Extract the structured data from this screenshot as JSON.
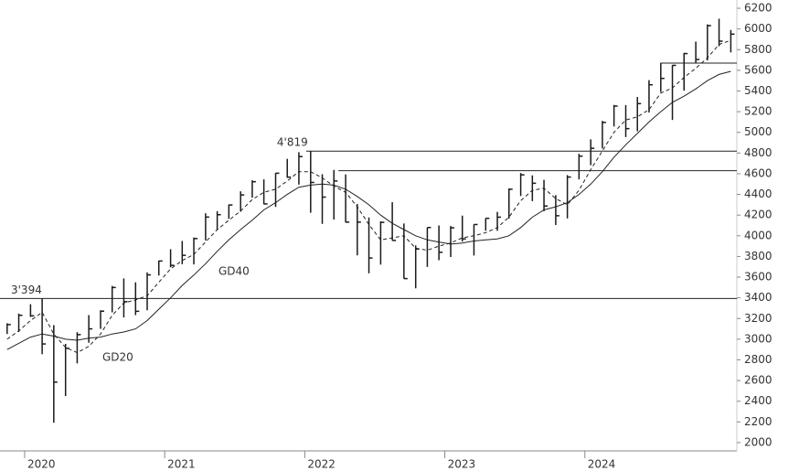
{
  "chart_data": {
    "type": "ohlc",
    "x": [
      2019.875,
      2019.958,
      2020.042,
      2020.125,
      2020.208,
      2020.292,
      2020.375,
      2020.458,
      2020.542,
      2020.625,
      2020.708,
      2020.792,
      2020.875,
      2020.958,
      2021.042,
      2021.125,
      2021.208,
      2021.292,
      2021.375,
      2021.458,
      2021.542,
      2021.625,
      2021.708,
      2021.792,
      2021.875,
      2021.958,
      2022.042,
      2022.125,
      2022.208,
      2022.292,
      2022.375,
      2022.458,
      2022.542,
      2022.625,
      2022.708,
      2022.792,
      2022.875,
      2022.958,
      2023.042,
      2023.125,
      2023.208,
      2023.292,
      2023.375,
      2023.458,
      2023.542,
      2023.625,
      2023.708,
      2023.792,
      2023.875,
      2023.958,
      2024.042,
      2024.125,
      2024.208,
      2024.292,
      2024.375,
      2024.458,
      2024.542,
      2024.625,
      2024.708,
      2024.792,
      2024.875,
      2024.958,
      2025.042
    ],
    "high": [
      3154,
      3248,
      3338,
      3394,
      3136,
      2955,
      3068,
      3233,
      3280,
      3515,
      3588,
      3550,
      3646,
      3760,
      3870,
      3950,
      3983,
      4218,
      4238,
      4302,
      4430,
      4537,
      4545,
      4608,
      4744,
      4808,
      4819,
      4595,
      4637,
      4593,
      4307,
      4177,
      4140,
      4325,
      4119,
      3907,
      4080,
      4100,
      4095,
      4195,
      4110,
      4170,
      4231,
      4458,
      4607,
      4584,
      4541,
      4393,
      4587,
      4793,
      4932,
      5111,
      5265,
      5264,
      5342,
      5505,
      5670,
      5651,
      5768,
      5878,
      6044,
      6099,
      5990
    ],
    "low": [
      3050,
      3070,
      3215,
      2855,
      2192,
      2450,
      2766,
      2966,
      3100,
      3260,
      3210,
      3233,
      3280,
      3616,
      3695,
      3725,
      3723,
      3955,
      4056,
      4164,
      4233,
      4368,
      4305,
      4279,
      4560,
      4495,
      4223,
      4115,
      4157,
      4128,
      3811,
      3637,
      3721,
      3955,
      3585,
      3492,
      3699,
      3764,
      3795,
      3944,
      3809,
      4049,
      4048,
      4166,
      4385,
      4335,
      4238,
      4104,
      4168,
      4546,
      4683,
      4845,
      5057,
      4954,
      5011,
      5192,
      5390,
      5120,
      5403,
      5674,
      5696,
      5833,
      5773
    ],
    "close": [
      3141,
      3231,
      3226,
      2954,
      2585,
      2912,
      3044,
      3100,
      3271,
      3500,
      3363,
      3270,
      3622,
      3756,
      3714,
      3811,
      3973,
      4181,
      4204,
      4298,
      4395,
      4523,
      4308,
      4605,
      4567,
      4766,
      4516,
      4374,
      4530,
      4132,
      4132,
      3785,
      4130,
      3955,
      3586,
      3872,
      4080,
      3840,
      4077,
      3970,
      4109,
      4169,
      4180,
      4450,
      4589,
      4508,
      4288,
      4194,
      4568,
      4770,
      4846,
      5096,
      5254,
      5036,
      5278,
      5460,
      5522,
      5648,
      5762,
      5705,
      6032,
      5882,
      5950
    ],
    "color": "#1a1a1a",
    "series": [
      {
        "name": "GD20",
        "dashed": true,
        "values": [
          3000,
          3080,
          3180,
          3260,
          3050,
          2920,
          2870,
          2930,
          3050,
          3230,
          3350,
          3380,
          3420,
          3550,
          3680,
          3760,
          3820,
          3940,
          4060,
          4150,
          4240,
          4350,
          4420,
          4450,
          4530,
          4620,
          4620,
          4560,
          4480,
          4420,
          4280,
          4110,
          3960,
          3980,
          4000,
          3880,
          3860,
          3900,
          3930,
          3980,
          4000,
          4030,
          4080,
          4180,
          4340,
          4440,
          4460,
          4360,
          4300,
          4440,
          4640,
          4820,
          5000,
          5120,
          5150,
          5220,
          5380,
          5430,
          5530,
          5620,
          5720,
          5850,
          5890
        ]
      },
      {
        "name": "GD40",
        "dashed": false,
        "values": [
          2900,
          2960,
          3020,
          3050,
          3030,
          3000,
          2990,
          3010,
          3020,
          3050,
          3070,
          3100,
          3180,
          3290,
          3400,
          3520,
          3620,
          3730,
          3850,
          3960,
          4060,
          4150,
          4250,
          4320,
          4400,
          4470,
          4490,
          4500,
          4490,
          4450,
          4380,
          4300,
          4200,
          4120,
          4060,
          4000,
          3960,
          3940,
          3920,
          3930,
          3950,
          3960,
          3970,
          4000,
          4080,
          4180,
          4250,
          4280,
          4320,
          4400,
          4500,
          4620,
          4760,
          4880,
          4990,
          5100,
          5200,
          5290,
          5350,
          5420,
          5500,
          5560,
          5590
        ]
      }
    ],
    "levels": [
      {
        "value": 3394,
        "label": "3'394",
        "from": 2019.824
      },
      {
        "value": 4819,
        "label": "4'819",
        "from": 2022.01
      },
      {
        "value": 4630,
        "from": 2022.24
      },
      {
        "value": 5670,
        "from": 2024.54
      }
    ],
    "xlim": [
      2019.824,
      2025.085
    ],
    "xticks": [
      2020,
      2021,
      2022,
      2023,
      2024
    ],
    "ylim": [
      1920,
      6280
    ],
    "yticks": [
      2000,
      2200,
      2400,
      2600,
      2800,
      3000,
      3200,
      3400,
      3600,
      3800,
      4000,
      4200,
      4400,
      4600,
      4800,
      5000,
      5200,
      5400,
      5600,
      5800,
      6000,
      6200
    ],
    "grid": false
  }
}
